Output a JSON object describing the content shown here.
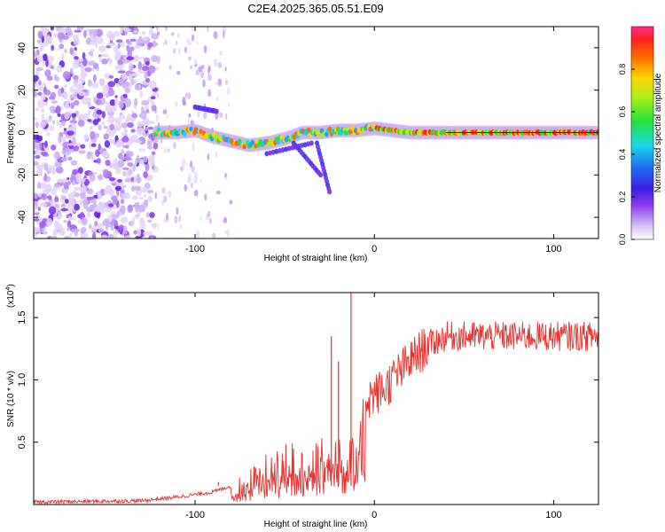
{
  "title": "C2E4.2025.365.05.51.E09",
  "chart_data": [
    {
      "type": "heatmap",
      "title": "C2E4.2025.365.05.51.E09",
      "xlabel": "Height of straight line (km)",
      "ylabel": "Frequency (Hz)",
      "xlim": [
        -190,
        125
      ],
      "ylim": [
        -50,
        50
      ],
      "xticks": [
        -100,
        0,
        100
      ],
      "yticks": [
        -40,
        -20,
        0,
        20,
        40
      ],
      "xtick_labels": [
        "-100",
        "0",
        "100"
      ],
      "ytick_labels": [
        "-40",
        "-20",
        "0",
        "20",
        "40"
      ],
      "colorbar": {
        "label": "Normalized spectral amplitude",
        "range": [
          0,
          1
        ],
        "ticks": [
          0.0,
          0.2,
          0.4,
          0.6,
          0.8
        ],
        "tick_labels": [
          "0.0",
          "0.2",
          "0.4",
          "0.6",
          "0.8"
        ],
        "colormap": "rainbow (white-violet-blue-cyan-green-yellow-red-magenta)"
      },
      "ridge": {
        "description": "dominant frequency ridge vs height",
        "x": [
          -120,
          -110,
          -100,
          -90,
          -80,
          -70,
          -60,
          -50,
          -40,
          -30,
          -20,
          -10,
          0,
          20,
          50,
          80,
          125
        ],
        "y": [
          0,
          0,
          1,
          -2,
          -4,
          -6,
          -5,
          -3,
          0,
          0,
          1,
          1,
          2,
          0,
          0,
          0,
          0
        ]
      },
      "noise_region_km": [
        -190,
        -122
      ]
    },
    {
      "type": "line",
      "xlabel": "Height of straight line (km)",
      "ylabel": "SNR (10 * v/v)",
      "y_multiplier_label": "(x10",
      "y_multiplier_exp": "4",
      "y_multiplier_close": ")",
      "xlim": [
        -190,
        125
      ],
      "ylim": [
        0,
        1.7
      ],
      "xticks": [
        -100,
        0,
        100
      ],
      "yticks": [
        0.5,
        1.0,
        1.5
      ],
      "xtick_labels": [
        "-100",
        "0",
        "100"
      ],
      "ytick_labels": [
        "0.5",
        "1.0",
        "1.5"
      ],
      "color": "#e8322f",
      "envelope": {
        "x": [
          -190,
          -130,
          -110,
          -90,
          -80,
          -70,
          -60,
          -50,
          -40,
          -30,
          -20,
          -15,
          -10,
          -5,
          5,
          10,
          20,
          30,
          40,
          60,
          80,
          100,
          125
        ],
        "y": [
          0.02,
          0.03,
          0.06,
          0.1,
          0.15,
          0.25,
          0.38,
          0.45,
          0.5,
          0.55,
          0.62,
          0.7,
          0.7,
          0.85,
          0.92,
          1.0,
          1.15,
          1.28,
          1.35,
          1.35,
          1.35,
          1.35,
          1.35
        ]
      },
      "spikes": [
        {
          "x": -13,
          "y": 1.7
        },
        {
          "x": -24,
          "y": 1.35
        },
        {
          "x": -20,
          "y": 1.15
        },
        {
          "x": -87,
          "y": 0.18
        }
      ]
    }
  ]
}
